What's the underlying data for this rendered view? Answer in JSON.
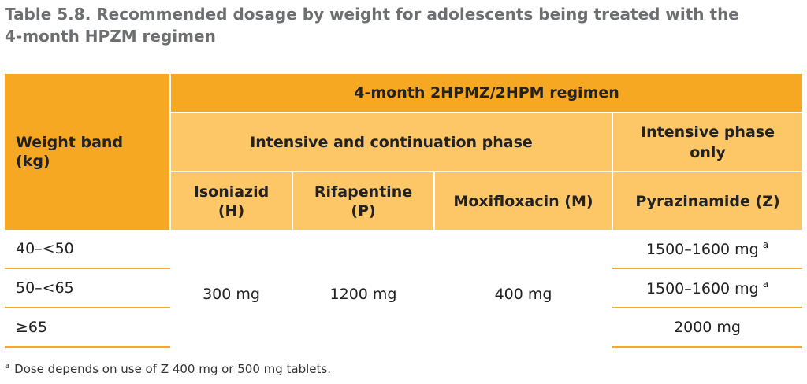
{
  "title": {
    "line1": "Table 5.8. Recommended dosage by weight for adolescents being treated with the",
    "line2": "4-month HPZM regimen"
  },
  "table": {
    "header": {
      "weight_band": "Weight band",
      "weight_unit": "(kg)",
      "regimen": "4-month 2HPMZ/2HPM regimen",
      "phase_both": "Intensive and continuation phase",
      "phase_intensive_line1": "Intensive phase",
      "phase_intensive_line2": "only",
      "drugs": [
        {
          "name": "Isoniazid",
          "abbr": "(H)"
        },
        {
          "name": "Rifapentine",
          "abbr": "(P)"
        },
        {
          "name": "Moxifloxacin (M)",
          "abbr": ""
        },
        {
          "name": "Pyrazinamide (Z)",
          "abbr": ""
        }
      ]
    },
    "rows": [
      {
        "weight": "40–<50",
        "z": "1500–1600 mg",
        "z_note": "a"
      },
      {
        "weight": "50–<65",
        "z": "1500–1600 mg",
        "z_note": "a"
      },
      {
        "weight": "≥65",
        "z": "2000 mg",
        "z_note": ""
      }
    ],
    "shared": {
      "h": "300 mg",
      "p": "1200 mg",
      "m": "400 mg"
    }
  },
  "footnote": {
    "marker": "a",
    "text": "Dose depends on use of Z 400 mg or 500 mg tablets."
  },
  "colors": {
    "header_dark": "#f7a823",
    "header_light": "#fdc768",
    "title_gray": "#6d6e71"
  }
}
